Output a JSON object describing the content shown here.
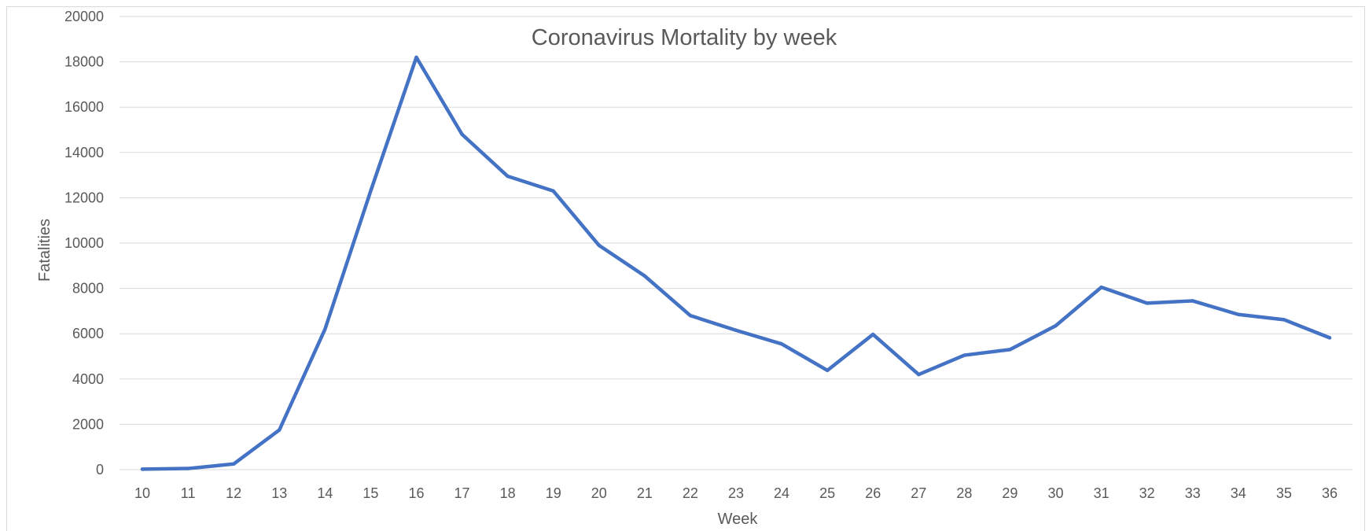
{
  "chart_data": {
    "type": "line",
    "title": "Coronavirus Mortality by week",
    "xlabel": "Week",
    "ylabel": "Fatalities",
    "ylim": [
      0,
      20000
    ],
    "yticks": [
      0,
      2000,
      4000,
      6000,
      8000,
      10000,
      12000,
      14000,
      16000,
      18000,
      20000
    ],
    "grid": true,
    "legend": "none",
    "categories": [
      "10",
      "11",
      "12",
      "13",
      "14",
      "15",
      "16",
      "17",
      "18",
      "19",
      "20",
      "21",
      "22",
      "23",
      "24",
      "25",
      "26",
      "27",
      "28",
      "29",
      "30",
      "31",
      "32",
      "33",
      "34",
      "35",
      "36"
    ],
    "series": [
      {
        "color": "#4472c4",
        "values": [
          20,
          50,
          250,
          1750,
          6200,
          12300,
          18200,
          14800,
          12950,
          12300,
          9900,
          8550,
          6800,
          6150,
          5550,
          4380,
          5970,
          4200,
          5050,
          5300,
          6350,
          8050,
          7350,
          7450,
          6850,
          6620,
          5820
        ]
      }
    ]
  }
}
